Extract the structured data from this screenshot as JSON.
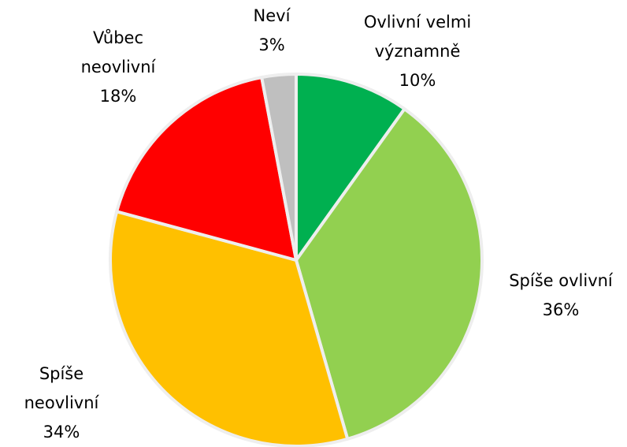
{
  "chart_data": {
    "type": "pie",
    "categories": [
      "Ovlivní velmi významně",
      "Spíše ovlivní",
      "Spíše neovlivní",
      "Vůbec neovlivní",
      "Neví"
    ],
    "values": [
      10,
      36,
      34,
      18,
      3
    ],
    "value_labels": [
      "10%",
      "36%",
      "34%",
      "18%",
      "3%"
    ],
    "colors": [
      "#00b050",
      "#92d050",
      "#ffc000",
      "#ff0000",
      "#bfbfbf"
    ]
  }
}
